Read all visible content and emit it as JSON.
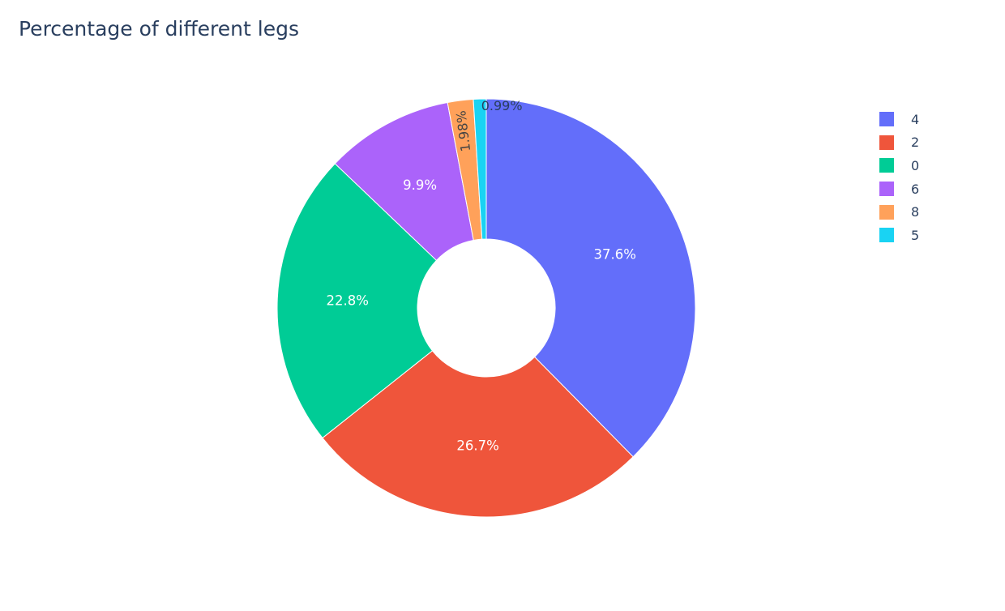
{
  "chart_data": {
    "type": "pie",
    "title": "Percentage of different legs",
    "hole": true,
    "legend_position": "top-right",
    "slices": [
      {
        "label": "4",
        "value": 37.6,
        "text": "37.6%",
        "color": "#636efa"
      },
      {
        "label": "2",
        "value": 26.7,
        "text": "26.7%",
        "color": "#ef553b"
      },
      {
        "label": "0",
        "value": 22.8,
        "text": "22.8%",
        "color": "#00cc96"
      },
      {
        "label": "6",
        "value": 9.9,
        "text": "9.9%",
        "color": "#ab63fa"
      },
      {
        "label": "8",
        "value": 1.98,
        "text": "1.98%",
        "color": "#ffa15a"
      },
      {
        "label": "5",
        "value": 0.99,
        "text": "0.99%",
        "color": "#19d3f3"
      }
    ]
  }
}
